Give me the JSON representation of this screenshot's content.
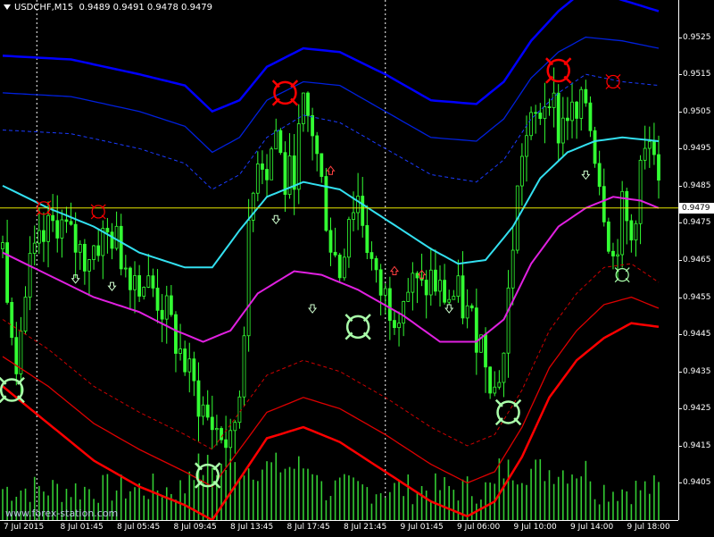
{
  "header": {
    "symbol": "USDCHF,M15",
    "ohlc": "0.9489 0.9491 0.9478 0.9479"
  },
  "watermark": "www.forex-station.com",
  "colors": {
    "background": "#000000",
    "candles": "#33ff33",
    "volume": "#33cc33",
    "outer_band": "#0000ff",
    "mid_band": "#0020dd",
    "inner_band_dashed": "#1a3aff",
    "upper_line": "#33e0f0",
    "middle_line": "#e020e0",
    "lower_outer_band": "#ff0000",
    "lower_mid_band": "#dd0000",
    "lower_inner_band_dashed": "#cc0000",
    "current_price_line": "#e8e800",
    "sell_signal": "#ff0000",
    "buy_signal": "#aaffaa"
  },
  "chart_data": {
    "type": "candlestick",
    "title": "USDCHF,M15",
    "ylim": [
      0.9395,
      0.9535
    ],
    "y_ticks": [
      "0.9525",
      "0.9515",
      "0.9505",
      "0.9495",
      "0.9485",
      "0.9475",
      "0.9465",
      "0.9455",
      "0.9445",
      "0.9435",
      "0.9425",
      "0.9415",
      "0.9405"
    ],
    "x_ticks": [
      "7 Jul 2015",
      "8 Jul 01:45",
      "8 Jul 05:45",
      "8 Jul 09:45",
      "8 Jul 13:45",
      "8 Jul 17:45",
      "8 Jul 21:45",
      "9 Jul 01:45",
      "9 Jul 06:00",
      "9 Jul 10:00",
      "9 Jul 14:00",
      "9 Jul 18:00"
    ],
    "current_price": "0.9479",
    "close_path": [
      [
        0,
        0.9468
      ],
      [
        3,
        0.944
      ],
      [
        6,
        0.9462
      ],
      [
        9,
        0.947
      ],
      [
        12,
        0.9476
      ],
      [
        15,
        0.947
      ],
      [
        18,
        0.9466
      ],
      [
        21,
        0.947
      ],
      [
        24,
        0.9472
      ],
      [
        27,
        0.9464
      ],
      [
        30,
        0.946
      ],
      [
        33,
        0.9457
      ],
      [
        36,
        0.945
      ],
      [
        39,
        0.944
      ],
      [
        42,
        0.943
      ],
      [
        45,
        0.9422
      ],
      [
        48,
        0.9418
      ],
      [
        50,
        0.9414
      ],
      [
        52,
        0.943
      ],
      [
        54,
        0.947
      ],
      [
        56,
        0.9495
      ],
      [
        58,
        0.949
      ],
      [
        60,
        0.95
      ],
      [
        62,
        0.9485
      ],
      [
        64,
        0.949
      ],
      [
        66,
        0.9505
      ],
      [
        68,
        0.95
      ],
      [
        70,
        0.9485
      ],
      [
        72,
        0.947
      ],
      [
        74,
        0.9462
      ],
      [
        76,
        0.9478
      ],
      [
        78,
        0.9482
      ],
      [
        80,
        0.947
      ],
      [
        82,
        0.9458
      ],
      [
        84,
        0.9455
      ],
      [
        86,
        0.9452
      ],
      [
        88,
        0.9456
      ],
      [
        90,
        0.9458
      ],
      [
        92,
        0.9456
      ],
      [
        94,
        0.946
      ],
      [
        96,
        0.9456
      ],
      [
        98,
        0.9455
      ],
      [
        100,
        0.9455
      ],
      [
        102,
        0.945
      ],
      [
        104,
        0.9446
      ],
      [
        106,
        0.944
      ],
      [
        108,
        0.943
      ],
      [
        110,
        0.944
      ],
      [
        112,
        0.947
      ],
      [
        114,
        0.9495
      ],
      [
        116,
        0.95
      ],
      [
        118,
        0.9505
      ],
      [
        120,
        0.9512
      ],
      [
        122,
        0.95
      ],
      [
        124,
        0.9505
      ],
      [
        126,
        0.9502
      ],
      [
        128,
        0.9508
      ],
      [
        130,
        0.9495
      ],
      [
        132,
        0.948
      ],
      [
        134,
        0.9465
      ],
      [
        136,
        0.9478
      ],
      [
        138,
        0.947
      ],
      [
        140,
        0.949
      ],
      [
        142,
        0.9495
      ],
      [
        144,
        0.9482
      ]
    ],
    "series": [
      {
        "name": "outer upper band",
        "color": "#0000ff",
        "width": 2.5,
        "dash": false,
        "points": [
          [
            0,
            0.952
          ],
          [
            15,
            0.9519
          ],
          [
            30,
            0.9515
          ],
          [
            40,
            0.9512
          ],
          [
            46,
            0.9505
          ],
          [
            52,
            0.9508
          ],
          [
            58,
            0.9517
          ],
          [
            66,
            0.9522
          ],
          [
            74,
            0.9521
          ],
          [
            84,
            0.9515
          ],
          [
            94,
            0.9508
          ],
          [
            104,
            0.9507
          ],
          [
            110,
            0.9513
          ],
          [
            116,
            0.9524
          ],
          [
            122,
            0.9532
          ],
          [
            128,
            0.9538
          ],
          [
            136,
            0.9535
          ],
          [
            144,
            0.9532
          ]
        ]
      },
      {
        "name": "mid upper band",
        "color": "#0020dd",
        "width": 1.3,
        "dash": false,
        "points": [
          [
            0,
            0.951
          ],
          [
            15,
            0.9509
          ],
          [
            30,
            0.9505
          ],
          [
            40,
            0.9501
          ],
          [
            46,
            0.9494
          ],
          [
            52,
            0.9498
          ],
          [
            58,
            0.9508
          ],
          [
            66,
            0.9513
          ],
          [
            74,
            0.9512
          ],
          [
            84,
            0.9505
          ],
          [
            94,
            0.9498
          ],
          [
            104,
            0.9497
          ],
          [
            110,
            0.9503
          ],
          [
            116,
            0.9514
          ],
          [
            122,
            0.9521
          ],
          [
            128,
            0.9525
          ],
          [
            136,
            0.9524
          ],
          [
            144,
            0.9522
          ]
        ]
      },
      {
        "name": "inner upper band",
        "color": "#1a3aff",
        "width": 1,
        "dash": true,
        "points": [
          [
            0,
            0.95
          ],
          [
            15,
            0.9499
          ],
          [
            30,
            0.9495
          ],
          [
            40,
            0.9491
          ],
          [
            46,
            0.9484
          ],
          [
            52,
            0.9488
          ],
          [
            58,
            0.9498
          ],
          [
            66,
            0.9504
          ],
          [
            74,
            0.9502
          ],
          [
            84,
            0.9495
          ],
          [
            94,
            0.9488
          ],
          [
            104,
            0.9486
          ],
          [
            110,
            0.9492
          ],
          [
            116,
            0.9503
          ],
          [
            122,
            0.951
          ],
          [
            128,
            0.9515
          ],
          [
            136,
            0.9513
          ],
          [
            144,
            0.9512
          ]
        ]
      },
      {
        "name": "upper line",
        "color": "#33e0f0",
        "width": 2,
        "dash": false,
        "points": [
          [
            0,
            0.9485
          ],
          [
            10,
            0.9479
          ],
          [
            20,
            0.9474
          ],
          [
            30,
            0.9467
          ],
          [
            40,
            0.9463
          ],
          [
            46,
            0.9463
          ],
          [
            52,
            0.9473
          ],
          [
            58,
            0.9482
          ],
          [
            66,
            0.9486
          ],
          [
            74,
            0.9484
          ],
          [
            84,
            0.9476
          ],
          [
            94,
            0.9468
          ],
          [
            100,
            0.9464
          ],
          [
            106,
            0.9465
          ],
          [
            112,
            0.9474
          ],
          [
            118,
            0.9487
          ],
          [
            124,
            0.9494
          ],
          [
            130,
            0.9497
          ],
          [
            136,
            0.9498
          ],
          [
            144,
            0.9497
          ]
        ]
      },
      {
        "name": "middle line",
        "color": "#e020e0",
        "width": 2,
        "dash": false,
        "points": [
          [
            0,
            0.9467
          ],
          [
            10,
            0.9461
          ],
          [
            20,
            0.9455
          ],
          [
            30,
            0.9451
          ],
          [
            38,
            0.9446
          ],
          [
            44,
            0.9443
          ],
          [
            50,
            0.9446
          ],
          [
            56,
            0.9456
          ],
          [
            64,
            0.9462
          ],
          [
            70,
            0.9461
          ],
          [
            78,
            0.9457
          ],
          [
            88,
            0.945
          ],
          [
            96,
            0.9443
          ],
          [
            104,
            0.9443
          ],
          [
            110,
            0.9449
          ],
          [
            116,
            0.9464
          ],
          [
            122,
            0.9474
          ],
          [
            128,
            0.9479
          ],
          [
            134,
            0.9482
          ],
          [
            140,
            0.9481
          ],
          [
            144,
            0.9479
          ]
        ]
      },
      {
        "name": "inner lower band",
        "color": "#cc0000",
        "width": 1,
        "dash": true,
        "points": [
          [
            0,
            0.9449
          ],
          [
            10,
            0.9441
          ],
          [
            20,
            0.9431
          ],
          [
            30,
            0.9424
          ],
          [
            40,
            0.9418
          ],
          [
            46,
            0.9414
          ],
          [
            52,
            0.9424
          ],
          [
            58,
            0.9434
          ],
          [
            66,
            0.9438
          ],
          [
            74,
            0.9435
          ],
          [
            84,
            0.9428
          ],
          [
            94,
            0.942
          ],
          [
            102,
            0.9415
          ],
          [
            108,
            0.9418
          ],
          [
            114,
            0.943
          ],
          [
            120,
            0.9446
          ],
          [
            126,
            0.9456
          ],
          [
            132,
            0.9463
          ],
          [
            138,
            0.9464
          ],
          [
            144,
            0.9459
          ]
        ]
      },
      {
        "name": "mid lower band",
        "color": "#dd0000",
        "width": 1.3,
        "dash": false,
        "points": [
          [
            0,
            0.9439
          ],
          [
            10,
            0.9431
          ],
          [
            20,
            0.9421
          ],
          [
            30,
            0.9414
          ],
          [
            40,
            0.9408
          ],
          [
            46,
            0.9404
          ],
          [
            52,
            0.9414
          ],
          [
            58,
            0.9424
          ],
          [
            66,
            0.9428
          ],
          [
            74,
            0.9425
          ],
          [
            84,
            0.9418
          ],
          [
            94,
            0.941
          ],
          [
            102,
            0.9405
          ],
          [
            108,
            0.9408
          ],
          [
            114,
            0.942
          ],
          [
            120,
            0.9436
          ],
          [
            126,
            0.9446
          ],
          [
            132,
            0.9453
          ],
          [
            138,
            0.9455
          ],
          [
            144,
            0.9452
          ]
        ]
      },
      {
        "name": "outer lower band",
        "color": "#ff0000",
        "width": 2.5,
        "dash": false,
        "points": [
          [
            0,
            0.9431
          ],
          [
            10,
            0.9421
          ],
          [
            20,
            0.9411
          ],
          [
            30,
            0.9404
          ],
          [
            40,
            0.9399
          ],
          [
            46,
            0.9395
          ],
          [
            52,
            0.9406
          ],
          [
            58,
            0.9417
          ],
          [
            66,
            0.942
          ],
          [
            74,
            0.9416
          ],
          [
            84,
            0.9408
          ],
          [
            94,
            0.94
          ],
          [
            102,
            0.9396
          ],
          [
            108,
            0.94
          ],
          [
            114,
            0.9412
          ],
          [
            120,
            0.9428
          ],
          [
            126,
            0.9438
          ],
          [
            132,
            0.9444
          ],
          [
            138,
            0.9448
          ],
          [
            144,
            0.9447
          ]
        ]
      }
    ],
    "sell_signals": [
      [
        9,
        0.9479,
        "small"
      ],
      [
        21,
        0.9478,
        "small"
      ],
      [
        62,
        0.951,
        "big"
      ],
      [
        122,
        0.9516,
        "big"
      ],
      [
        134,
        0.9513,
        "small"
      ]
    ],
    "buy_signals": [
      [
        2,
        0.943,
        "big"
      ],
      [
        45,
        0.9407,
        "big"
      ],
      [
        78,
        0.9447,
        "big"
      ],
      [
        111,
        0.9424,
        "big"
      ],
      [
        136,
        0.9461,
        "small"
      ]
    ],
    "small_arrows_up": [
      [
        72,
        0.9489
      ],
      [
        86,
        0.9462
      ],
      [
        92,
        0.9461
      ]
    ],
    "small_arrows_down": [
      [
        16,
        0.946
      ],
      [
        24,
        0.9458
      ],
      [
        60,
        0.9476
      ],
      [
        68,
        0.9452
      ],
      [
        98,
        0.9452
      ],
      [
        128,
        0.9488
      ]
    ],
    "vertical_separators": [
      7.5,
      84
    ]
  }
}
